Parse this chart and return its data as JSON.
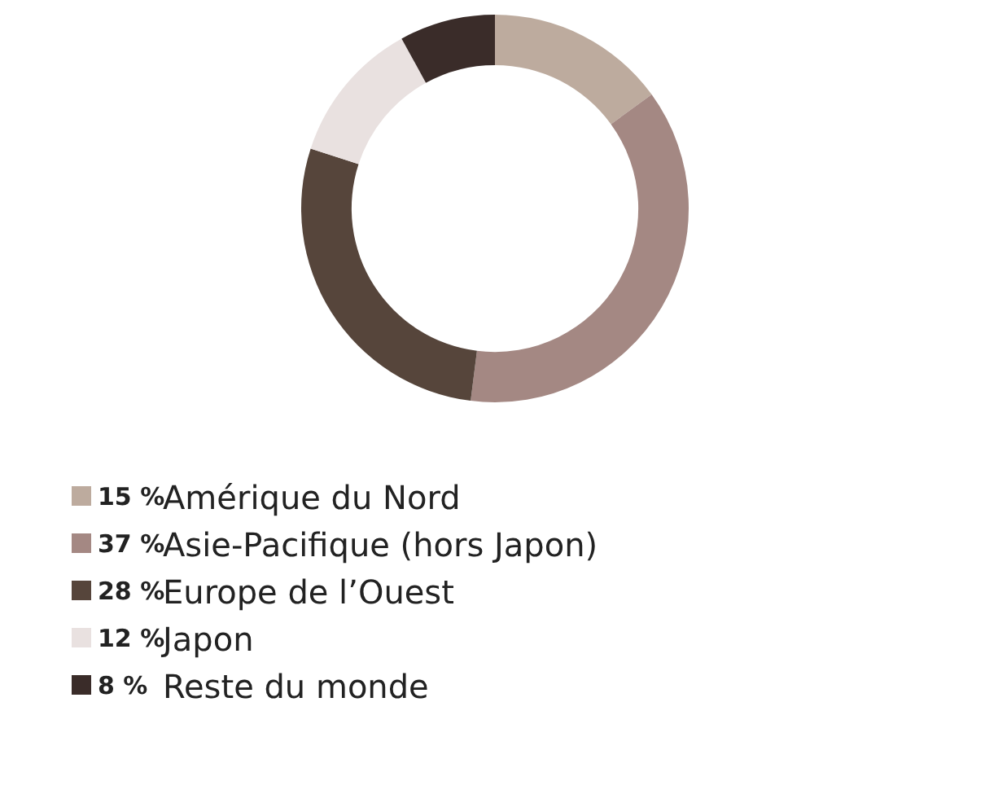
{
  "chart_data": {
    "type": "donut",
    "categories": [
      "Amérique du Nord",
      "Asie-Pacifique (hors Japon)",
      "Europe de l’Ouest",
      "Japon",
      "Reste du monde"
    ],
    "values": [
      15,
      37,
      28,
      12,
      8
    ],
    "value_labels": [
      "15 %",
      "37 %",
      "28 %",
      "12 %",
      "8 %"
    ],
    "colors": [
      "#bdab9e",
      "#a48883",
      "#56453b",
      "#e9e1e0",
      "#3a2c29"
    ],
    "legend": "bottom"
  }
}
